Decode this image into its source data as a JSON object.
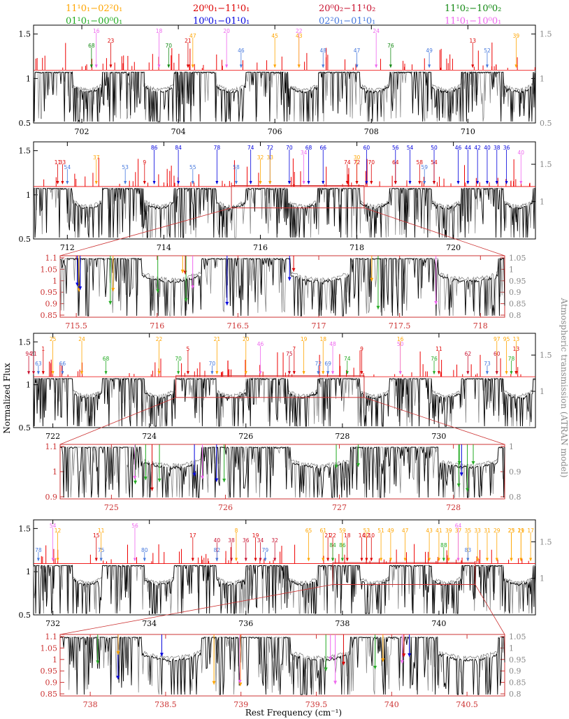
{
  "legend": {
    "bands": [
      {
        "label": "11¹0₁−02²0₁",
        "color": "#ffa500"
      },
      {
        "label": "01¹0₁−00⁰0₁",
        "color": "#22aa22"
      },
      {
        "label": "20⁰0₁−11¹0₁",
        "color": "#dd0000"
      },
      {
        "label": "10⁰0₁−01¹0₁",
        "color": "#0000dd"
      },
      {
        "label": "20⁰0₂−11¹0₂",
        "color": "#c8102e"
      },
      {
        "label": "02²0₁−01¹0₁",
        "color": "#4477dd"
      },
      {
        "label": "11¹0₂−10⁰0₂",
        "color": "#118811"
      },
      {
        "label": "11¹0₁−10⁰0₁",
        "color": "#ee66ee"
      }
    ]
  },
  "axes": {
    "xlabel": "Rest Frequency (cm⁻¹)",
    "ylabel_left": "Normalized Flux",
    "ylabel_right": "Atmospheric transmission (ATRAN model)"
  },
  "colors": {
    "observed": "#000000",
    "atran": "#888888",
    "model": "#ee0000",
    "zoom_frame": "#cc3333",
    "zoom_ticks": "#cc3333"
  },
  "chart_data": [
    {
      "type": "line",
      "panel": "main-1",
      "xlim": [
        701.0,
        711.4
      ],
      "ylim_left": [
        0.5,
        1.6
      ],
      "yticks_left": [
        "0.5",
        "1",
        "1.5"
      ],
      "yticks_right": [
        "0.5",
        "1",
        "1.5"
      ],
      "xticks": [
        "702",
        "704",
        "706",
        "708",
        "710"
      ],
      "series": [
        {
          "values_note": "dense spectrum"
        }
      ],
      "annotations": [
        {
          "label": "16",
          "x": 702.3,
          "color": "#ee66ee"
        },
        {
          "label": "18",
          "x": 703.6,
          "color": "#ee66ee"
        },
        {
          "label": "20",
          "x": 705.0,
          "color": "#ee66ee"
        },
        {
          "label": "22",
          "x": 706.5,
          "color": "#ee66ee"
        },
        {
          "label": "24",
          "x": 708.1,
          "color": "#ee66ee"
        },
        {
          "label": "47",
          "x": 704.3,
          "color": "#ffa500"
        },
        {
          "label": "45",
          "x": 706.0,
          "color": "#ffa500"
        },
        {
          "label": "43",
          "x": 706.5,
          "color": "#ffa500"
        },
        {
          "label": "39",
          "x": 711.0,
          "color": "#ffa500"
        },
        {
          "label": "23",
          "x": 702.6,
          "color": "#dd0000"
        },
        {
          "label": "21",
          "x": 704.2,
          "color": "#dd0000"
        },
        {
          "label": "13",
          "x": 710.1,
          "color": "#dd0000"
        },
        {
          "label": "68",
          "x": 702.2,
          "color": "#118811"
        },
        {
          "label": "70",
          "x": 703.8,
          "color": "#118811"
        },
        {
          "label": "76",
          "x": 708.4,
          "color": "#118811"
        },
        {
          "label": "46",
          "x": 705.3,
          "color": "#4477dd"
        },
        {
          "label": "48",
          "x": 707.0,
          "color": "#4477dd"
        },
        {
          "label": "47",
          "x": 707.7,
          "color": "#4477dd"
        },
        {
          "label": "49",
          "x": 709.2,
          "color": "#4477dd"
        },
        {
          "label": "52",
          "x": 710.4,
          "color": "#4477dd"
        }
      ]
    },
    {
      "type": "line",
      "panel": "main-2",
      "xlim": [
        711.3,
        721.7
      ],
      "ylim_left": [
        0.5,
        1.6
      ],
      "yticks_left": [
        "0.5",
        "1",
        "1.5"
      ],
      "yticks_right": [
        "1",
        "1.5"
      ],
      "xticks": [
        "712",
        "714",
        "716",
        "718",
        "720"
      ],
      "annotations": [
        {
          "label": "86",
          "x": 713.8,
          "color": "#0000dd"
        },
        {
          "label": "84",
          "x": 714.3,
          "color": "#0000dd"
        },
        {
          "label": "78",
          "x": 715.1,
          "color": "#0000dd"
        },
        {
          "label": "74",
          "x": 715.8,
          "color": "#0000dd"
        },
        {
          "label": "72",
          "x": 716.2,
          "color": "#0000dd"
        },
        {
          "label": "70",
          "x": 716.6,
          "color": "#0000dd"
        },
        {
          "label": "68",
          "x": 717.0,
          "color": "#0000dd"
        },
        {
          "label": "66",
          "x": 717.3,
          "color": "#0000dd"
        },
        {
          "label": "60",
          "x": 718.2,
          "color": "#0000dd"
        },
        {
          "label": "56",
          "x": 718.8,
          "color": "#0000dd"
        },
        {
          "label": "54",
          "x": 719.1,
          "color": "#0000dd"
        },
        {
          "label": "50",
          "x": 719.6,
          "color": "#0000dd"
        },
        {
          "label": "46",
          "x": 720.1,
          "color": "#0000dd"
        },
        {
          "label": "44",
          "x": 720.3,
          "color": "#0000dd"
        },
        {
          "label": "42",
          "x": 720.5,
          "color": "#0000dd"
        },
        {
          "label": "40",
          "x": 720.7,
          "color": "#0000dd"
        },
        {
          "label": "38",
          "x": 720.9,
          "color": "#0000dd"
        },
        {
          "label": "36",
          "x": 721.1,
          "color": "#0000dd"
        },
        {
          "label": "40",
          "x": 721.4,
          "color": "#ee66ee"
        },
        {
          "label": "37",
          "x": 712.6,
          "color": "#ffa500"
        },
        {
          "label": "32",
          "x": 716.0,
          "color": "#ffa500"
        },
        {
          "label": "33",
          "x": 716.2,
          "color": "#ffa500"
        },
        {
          "label": "30",
          "x": 718.0,
          "color": "#ffa500"
        },
        {
          "label": "11",
          "x": 711.8,
          "color": "#dd0000"
        },
        {
          "label": "33",
          "x": 711.9,
          "color": "#dd0000"
        },
        {
          "label": "9",
          "x": 713.6,
          "color": "#dd0000"
        },
        {
          "label": "74",
          "x": 717.8,
          "color": "#dd0000"
        },
        {
          "label": "72",
          "x": 718.0,
          "color": "#dd0000"
        },
        {
          "label": "70",
          "x": 718.3,
          "color": "#dd0000"
        },
        {
          "label": "64",
          "x": 718.8,
          "color": "#dd0000"
        },
        {
          "label": "58",
          "x": 719.3,
          "color": "#dd0000"
        },
        {
          "label": "54",
          "x": 719.6,
          "color": "#dd0000"
        },
        {
          "label": "54",
          "x": 712.0,
          "color": "#4477dd"
        },
        {
          "label": "53",
          "x": 713.2,
          "color": "#4477dd"
        },
        {
          "label": "55",
          "x": 714.6,
          "color": "#4477dd"
        },
        {
          "label": "58",
          "x": 715.5,
          "color": "#4477dd"
        },
        {
          "label": "34",
          "x": 716.9,
          "color": "#ee66ee"
        },
        {
          "label": "59",
          "x": 719.4,
          "color": "#4477dd"
        }
      ]
    },
    {
      "type": "line",
      "panel": "zoom-1",
      "xlim": [
        715.4,
        718.15
      ],
      "ylim_left": [
        0.85,
        1.1
      ],
      "yticks_left": [
        "0.85",
        "0.9",
        "0.95",
        "1",
        "1.05",
        "1.1"
      ],
      "yticks_right": [
        "0.8",
        "0.85",
        "0.9",
        "0.95",
        "1",
        "1.05"
      ],
      "xticks": [
        "715.5",
        "716",
        "716.5",
        "717",
        "717.5",
        "718"
      ]
    },
    {
      "type": "line",
      "panel": "main-3",
      "xlim": [
        721.6,
        732.0
      ],
      "ylim_left": [
        0.5,
        1.6
      ],
      "yticks_left": [
        "0.5",
        "1",
        "1.5"
      ],
      "yticks_right": [
        "1",
        "1.5"
      ],
      "xticks": [
        "722",
        "724",
        "726",
        "728",
        "730"
      ],
      "annotations": [
        {
          "label": "25",
          "x": 722.0,
          "color": "#ffa500"
        },
        {
          "label": "24",
          "x": 722.6,
          "color": "#ffa500"
        },
        {
          "label": "22",
          "x": 724.2,
          "color": "#ffa500"
        },
        {
          "label": "21",
          "x": 725.4,
          "color": "#ffa500"
        },
        {
          "label": "20",
          "x": 726.0,
          "color": "#ffa500"
        },
        {
          "label": "19",
          "x": 727.2,
          "color": "#ffa500"
        },
        {
          "label": "18",
          "x": 727.6,
          "color": "#ffa500"
        },
        {
          "label": "16",
          "x": 729.2,
          "color": "#ffa500"
        },
        {
          "label": "97",
          "x": 731.2,
          "color": "#ffa500"
        },
        {
          "label": "95",
          "x": 731.4,
          "color": "#ffa500"
        },
        {
          "label": "13",
          "x": 731.6,
          "color": "#ffa500"
        },
        {
          "label": "46",
          "x": 726.3,
          "color": "#ee66ee"
        },
        {
          "label": "48",
          "x": 727.8,
          "color": "#ee66ee"
        },
        {
          "label": "50",
          "x": 729.2,
          "color": "#ee66ee"
        },
        {
          "label": "5",
          "x": 724.8,
          "color": "#dd0000"
        },
        {
          "label": "7",
          "x": 727.0,
          "color": "#dd0000"
        },
        {
          "label": "9",
          "x": 728.4,
          "color": "#dd0000"
        },
        {
          "label": "11",
          "x": 730.0,
          "color": "#dd0000"
        },
        {
          "label": "13",
          "x": 731.6,
          "color": "#dd0000"
        },
        {
          "label": "1",
          "x": 721.8,
          "color": "#dd0000"
        },
        {
          "label": "75",
          "x": 726.9,
          "color": "#c8102e"
        },
        {
          "label": "62",
          "x": 730.6,
          "color": "#c8102e"
        },
        {
          "label": "60",
          "x": 731.2,
          "color": "#c8102e"
        },
        {
          "label": "21",
          "x": 721.6,
          "color": "#c8102e"
        },
        {
          "label": "94",
          "x": 721.5,
          "color": "#c8102e"
        },
        {
          "label": "68",
          "x": 723.1,
          "color": "#22aa22"
        },
        {
          "label": "70",
          "x": 724.6,
          "color": "#22aa22"
        },
        {
          "label": "74",
          "x": 728.1,
          "color": "#22aa22"
        },
        {
          "label": "76",
          "x": 729.9,
          "color": "#22aa22"
        },
        {
          "label": "78",
          "x": 731.5,
          "color": "#22aa22"
        },
        {
          "label": "66",
          "x": 722.2,
          "color": "#4477dd"
        },
        {
          "label": "63",
          "x": 721.7,
          "color": "#4477dd"
        },
        {
          "label": "70",
          "x": 725.3,
          "color": "#4477dd"
        },
        {
          "label": "72",
          "x": 727.5,
          "color": "#4477dd"
        },
        {
          "label": "69",
          "x": 727.7,
          "color": "#4477dd"
        },
        {
          "label": "73",
          "x": 731.0,
          "color": "#4477dd"
        }
      ]
    },
    {
      "type": "line",
      "panel": "zoom-2",
      "xlim": [
        724.55,
        728.45
      ],
      "ylim_left": [
        0.82,
        1.1
      ],
      "yticks_left": [
        "0.9",
        "1",
        "1.1"
      ],
      "yticks_right": [
        "0.8",
        "0.9",
        "1"
      ],
      "xticks": [
        "725",
        "726",
        "727",
        "728"
      ]
    },
    {
      "type": "line",
      "panel": "main-4",
      "xlim": [
        731.6,
        742.0
      ],
      "ylim_left": [
        0.5,
        1.6
      ],
      "yticks_left": [
        "0.5",
        "1",
        "1.5"
      ],
      "yticks_right": [
        "1",
        "1.5"
      ],
      "xticks": [
        "732",
        "734",
        "736",
        "738",
        "740"
      ],
      "annotations": [
        {
          "label": "54",
          "x": 732.0,
          "color": "#ee66ee"
        },
        {
          "label": "56",
          "x": 733.7,
          "color": "#ee66ee"
        },
        {
          "label": "12",
          "x": 732.1,
          "color": "#ffa500"
        },
        {
          "label": "11",
          "x": 733.0,
          "color": "#ffa500"
        },
        {
          "label": "8",
          "x": 735.8,
          "color": "#ffa500"
        },
        {
          "label": "65",
          "x": 737.3,
          "color": "#ffa500"
        },
        {
          "label": "61",
          "x": 737.6,
          "color": "#ffa500"
        },
        {
          "label": "59",
          "x": 738.0,
          "color": "#ffa500"
        },
        {
          "label": "53",
          "x": 738.5,
          "color": "#ffa500"
        },
        {
          "label": "51",
          "x": 738.8,
          "color": "#ffa500"
        },
        {
          "label": "49",
          "x": 739.0,
          "color": "#ffa500"
        },
        {
          "label": "47",
          "x": 739.3,
          "color": "#ffa500"
        },
        {
          "label": "43",
          "x": 739.8,
          "color": "#ffa500"
        },
        {
          "label": "41",
          "x": 740.0,
          "color": "#ffa500"
        },
        {
          "label": "39",
          "x": 740.2,
          "color": "#ffa500"
        },
        {
          "label": "37",
          "x": 740.4,
          "color": "#ffa500"
        },
        {
          "label": "35",
          "x": 740.6,
          "color": "#ffa500"
        },
        {
          "label": "33",
          "x": 740.8,
          "color": "#ffa500"
        },
        {
          "label": "31",
          "x": 741.0,
          "color": "#ffa500"
        },
        {
          "label": "29",
          "x": 741.2,
          "color": "#ffa500"
        },
        {
          "label": "25",
          "x": 741.5,
          "color": "#ffa500"
        },
        {
          "label": "21",
          "x": 741.7,
          "color": "#ffa500"
        },
        {
          "label": "17",
          "x": 741.9,
          "color": "#ffa500"
        },
        {
          "label": "23",
          "x": 741.5,
          "color": "#ffa500"
        },
        {
          "label": "19",
          "x": 741.7,
          "color": "#ffa500"
        },
        {
          "label": "64",
          "x": 740.4,
          "color": "#ee66ee"
        },
        {
          "label": "15",
          "x": 732.9,
          "color": "#dd0000"
        },
        {
          "label": "17",
          "x": 734.9,
          "color": "#dd0000"
        },
        {
          "label": "19",
          "x": 736.2,
          "color": "#dd0000"
        },
        {
          "label": "21",
          "x": 737.7,
          "color": "#dd0000"
        },
        {
          "label": "22",
          "x": 737.8,
          "color": "#dd0000"
        },
        {
          "label": "18",
          "x": 738.1,
          "color": "#dd0000"
        },
        {
          "label": "14",
          "x": 738.4,
          "color": "#dd0000"
        },
        {
          "label": "12",
          "x": 738.5,
          "color": "#dd0000"
        },
        {
          "label": "10",
          "x": 738.6,
          "color": "#dd0000"
        },
        {
          "label": "40",
          "x": 735.4,
          "color": "#c8102e"
        },
        {
          "label": "38",
          "x": 735.7,
          "color": "#c8102e"
        },
        {
          "label": "36",
          "x": 736.0,
          "color": "#c8102e"
        },
        {
          "label": "34",
          "x": 736.3,
          "color": "#c8102e"
        },
        {
          "label": "32",
          "x": 736.6,
          "color": "#c8102e"
        },
        {
          "label": "84",
          "x": 737.8,
          "color": "#22aa22"
        },
        {
          "label": "86",
          "x": 738.0,
          "color": "#22aa22"
        },
        {
          "label": "88",
          "x": 740.1,
          "color": "#22aa22"
        },
        {
          "label": "78",
          "x": 731.7,
          "color": "#4477dd"
        },
        {
          "label": "75",
          "x": 733.0,
          "color": "#4477dd"
        },
        {
          "label": "80",
          "x": 733.9,
          "color": "#4477dd"
        },
        {
          "label": "82",
          "x": 735.4,
          "color": "#4477dd"
        },
        {
          "label": "79",
          "x": 736.4,
          "color": "#4477dd"
        },
        {
          "label": "83",
          "x": 740.6,
          "color": "#4477dd"
        }
      ]
    },
    {
      "type": "line",
      "panel": "zoom-3",
      "xlim": [
        737.8,
        740.75
      ],
      "ylim_left": [
        0.85,
        1.1
      ],
      "yticks_left": [
        "0.85",
        "0.9",
        "0.95",
        "1",
        "1.05",
        "1.1"
      ],
      "yticks_right": [
        "0.8",
        "0.85",
        "0.9",
        "0.95",
        "1",
        "1.05"
      ],
      "xticks": [
        "738",
        "738.5",
        "739",
        "739.5",
        "740",
        "740.5"
      ]
    }
  ]
}
